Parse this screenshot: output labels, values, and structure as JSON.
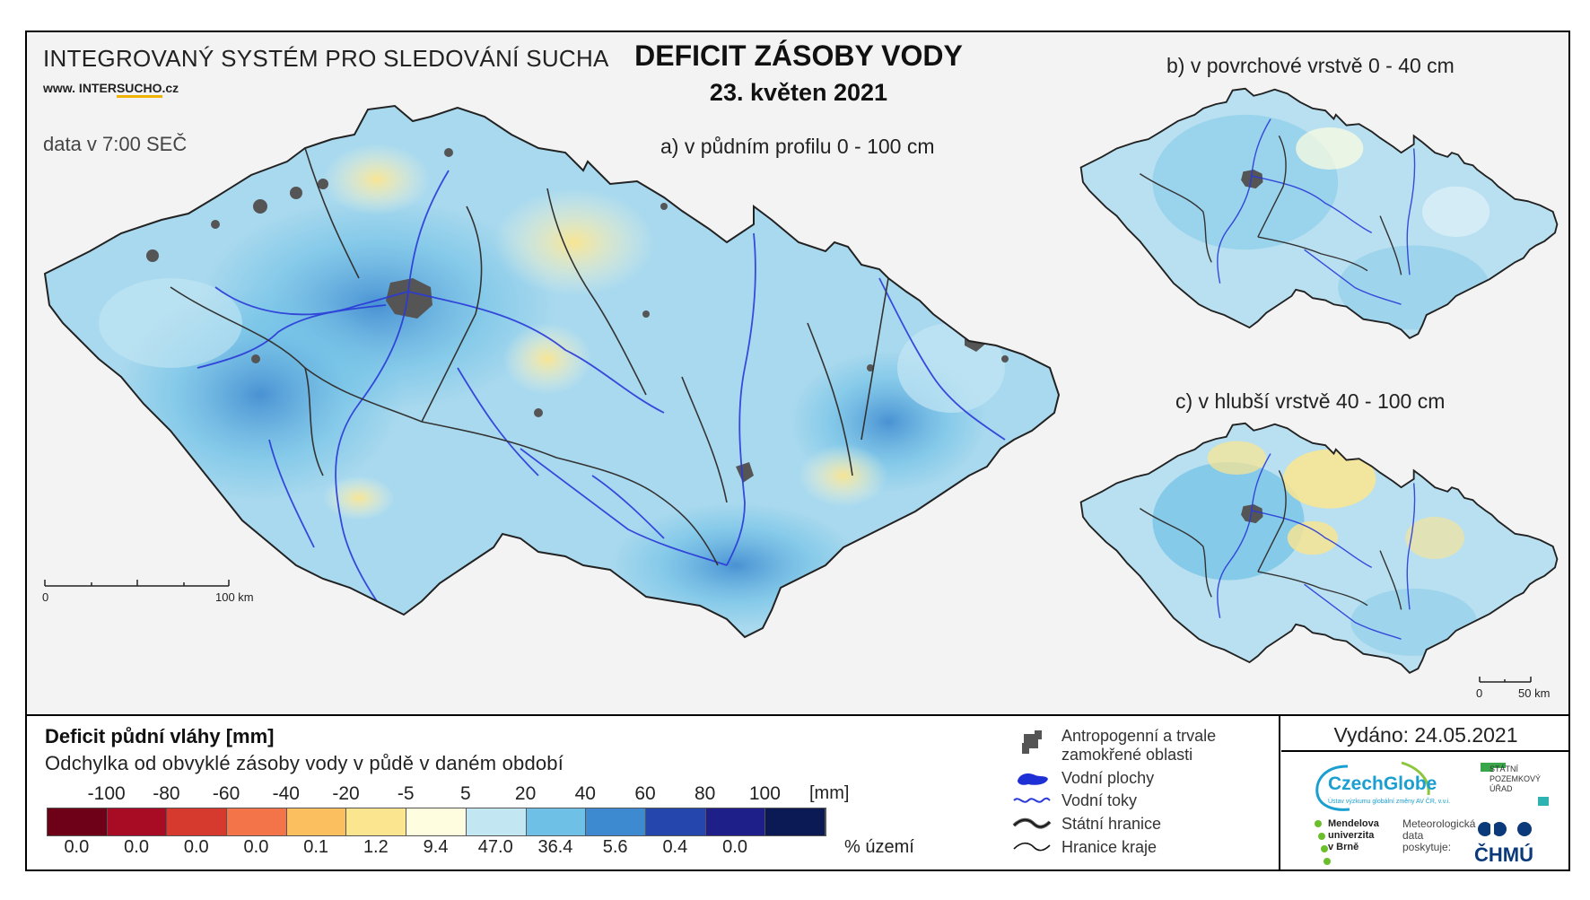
{
  "header": {
    "system_title": "INTEGROVANÝ SYSTÉM PRO SLEDOVÁNÍ SUCHA",
    "url_prefix": "www. INTER",
    "url_highlight": "SUCHO",
    "url_suffix": ".cz",
    "data_time": "data v 7:00 SEČ",
    "main_title": "DEFICIT ZÁSOBY VODY",
    "date": "23. květen 2021"
  },
  "maps": {
    "a_label": "a) v půdním profilu 0 - 100 cm",
    "b_label": "b) v povrchové vrstvě 0 - 40 cm",
    "c_label": "c) v hlubší vrstvě 40 - 100 cm",
    "scale_main": {
      "zero": "0",
      "end": "100 km"
    },
    "scale_small": {
      "zero": "0",
      "end": "50 km"
    }
  },
  "legend": {
    "title": "Deficit půdní vláhy  [mm]",
    "subtitle": "Odchylka od obvyklé zásoby vody v půdě v daném období",
    "unit": "[mm]",
    "pct_label": "% území",
    "ticks": [
      "-100",
      "-80",
      "-60",
      "-40",
      "-20",
      "-5",
      "5",
      "20",
      "40",
      "60",
      "80",
      "100"
    ],
    "classes": [
      {
        "color": "#6e0018",
        "pct": "0.0"
      },
      {
        "color": "#a80c24",
        "pct": "0.0"
      },
      {
        "color": "#d63a2f",
        "pct": "0.0"
      },
      {
        "color": "#f4744a",
        "pct": "0.0"
      },
      {
        "color": "#fcbf5f",
        "pct": "0.1"
      },
      {
        "color": "#fbe58f",
        "pct": "1.2"
      },
      {
        "color": "#fffde0",
        "pct": "9.4"
      },
      {
        "color": "#c3e6f3",
        "pct": "47.0"
      },
      {
        "color": "#6fc0e6",
        "pct": "36.4"
      },
      {
        "color": "#3e8ad0",
        "pct": "5.6"
      },
      {
        "color": "#2546ad",
        "pct": "0.4"
      },
      {
        "color": "#1f1f8a",
        "pct": "0.0"
      },
      {
        "color": "#0b1a55",
        "pct": ""
      }
    ]
  },
  "symbols": {
    "anthro_1": "Antropogenní a trvale",
    "anthro_2": "zamokřené oblasti",
    "water_bodies": "Vodní plochy",
    "water_courses": "Vodní toky",
    "state_border": "Státní hranice",
    "region_border": "Hranice kraje"
  },
  "footer": {
    "issued": "Vydáno: 24.05.2021",
    "czechglobe": "CzechGlobe",
    "czechglobe_small": "Ústav výzkumu globální změny AV ČR, v.v.i.",
    "spu_1": "STÁTNÍ",
    "spu_2": "POZEMKOVÝ",
    "spu_3": "ÚŘAD",
    "mendel_1": "Mendelova",
    "mendel_2": "univerzita",
    "mendel_3": "v Brně",
    "meteo_1": "Meteorologická",
    "meteo_2": "data",
    "meteo_3": "poskytuje:",
    "chmu": "ČHMÚ"
  },
  "colors": {
    "land_base": "#bfe3f3",
    "land_wet": "#5ea9dd",
    "land_dry": "#f6e39a",
    "river": "#2a3ad8",
    "border": "#222222",
    "urban": "#555555"
  }
}
